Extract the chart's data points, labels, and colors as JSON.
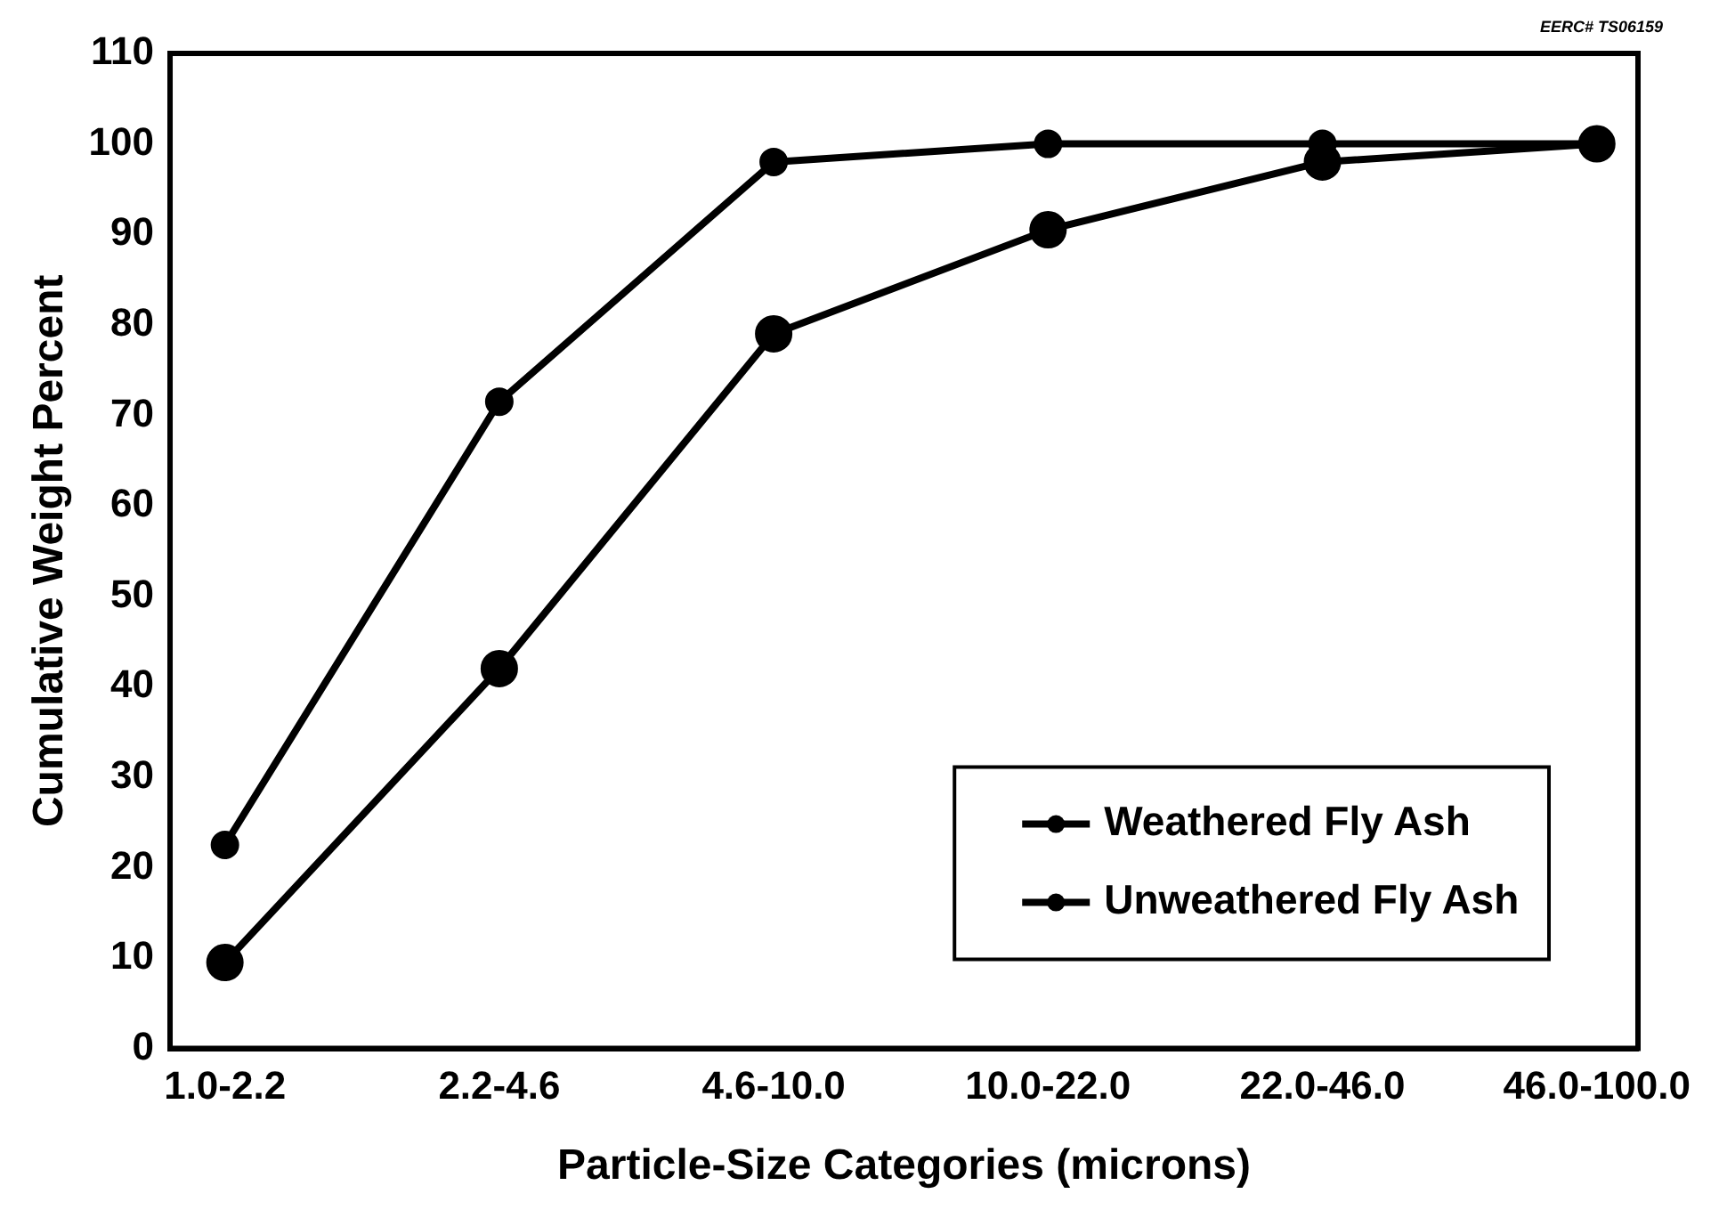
{
  "chart_data": {
    "type": "line",
    "xlabel": "Particle-Size Categories (microns)",
    "ylabel": "Cumulative Weight Percent",
    "annotations": [
      "EERC# TS06159"
    ],
    "categories": [
      "1.0-2.2",
      "2.2-4.6",
      "4.6-10.0",
      "10.0-22.0",
      "22.0-46.0",
      "46.0-100.0"
    ],
    "series": [
      {
        "name": "Weathered Fly Ash",
        "color": "#000000",
        "values": [
          22.5,
          71.5,
          98,
          100,
          100,
          100
        ]
      },
      {
        "name": "Unweathered Fly Ash",
        "color": "#000000",
        "values": [
          9.5,
          42,
          79,
          90.5,
          98,
          100
        ]
      }
    ],
    "ylim": [
      0,
      110
    ],
    "yticks": [
      0,
      10,
      20,
      30,
      40,
      50,
      60,
      70,
      80,
      90,
      100,
      110
    ],
    "grid": false,
    "legend": "bottom right",
    "marker": "circle",
    "line_style": "solid"
  }
}
